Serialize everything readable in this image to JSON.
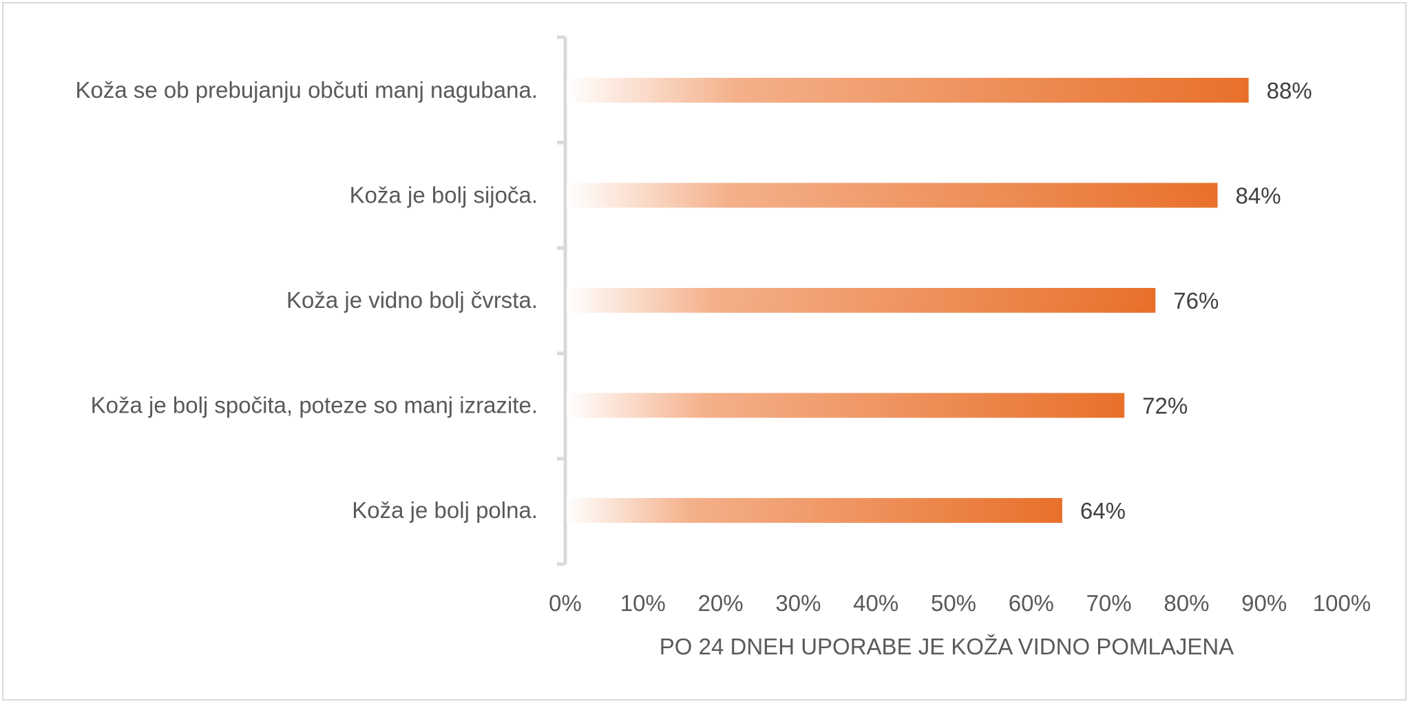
{
  "chart_data": {
    "type": "bar",
    "orientation": "horizontal",
    "categories": [
      "Koža se ob prebujanju občuti manj nagubana.",
      "Koža je bolj sijoča.",
      "Koža je vidno bolj čvrsta.",
      "Koža je bolj spočita, poteze so manj izrazite.",
      "Koža je bolj polna."
    ],
    "values": [
      88,
      84,
      76,
      72,
      64
    ],
    "value_labels": [
      "88%",
      "84%",
      "76%",
      "72%",
      "64%"
    ],
    "title": "",
    "xlabel": "PO 24 DNEH UPORABE JE KOŽA VIDNO POMLAJENA",
    "ylabel": "",
    "xlim": [
      0,
      100
    ],
    "x_ticks": [
      0,
      10,
      20,
      30,
      40,
      50,
      60,
      70,
      80,
      90,
      100
    ],
    "x_tick_labels": [
      "0%",
      "10%",
      "20%",
      "30%",
      "40%",
      "50%",
      "60%",
      "70%",
      "80%",
      "90%",
      "100%"
    ],
    "grid": false,
    "legend": "none",
    "bar_color": "#e8702a",
    "bar_gradient_start": "#ffffff",
    "axis_color": "#d9d9d9"
  }
}
